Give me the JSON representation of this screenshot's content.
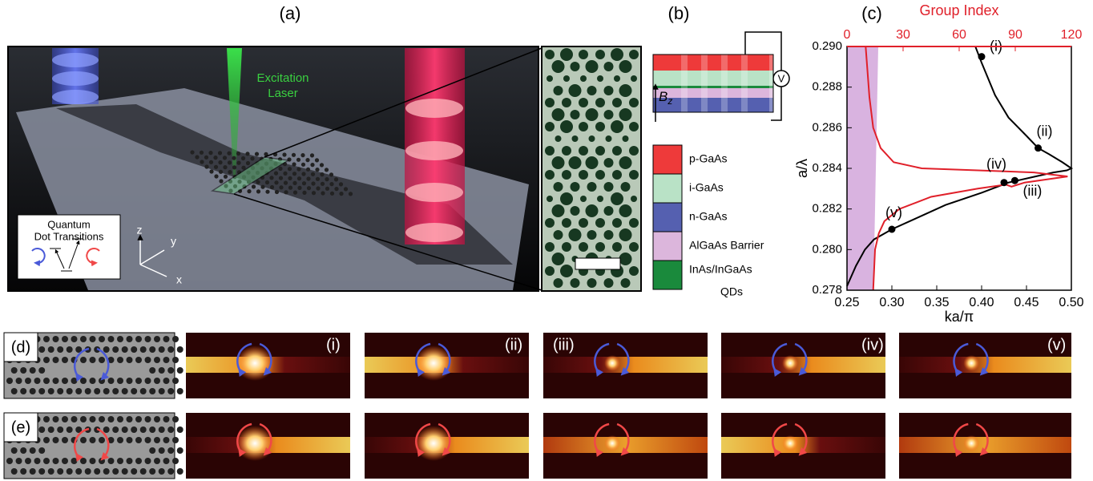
{
  "labels": {
    "a": "(a)",
    "b": "(b)",
    "c": "(c)",
    "d": "(d)",
    "e": "(e)"
  },
  "panel_a": {
    "laser_label": [
      "Excitation",
      "Laser"
    ],
    "inset_title": [
      "Quantum",
      "Dot Transitions"
    ],
    "axes": [
      "z",
      "y",
      "x"
    ]
  },
  "panel_b": {
    "field": "B",
    "field_sub": "z",
    "voltage": "V",
    "legend": [
      {
        "label": [
          "p-GaAs"
        ],
        "color": "#ee3a3a"
      },
      {
        "label": [
          "i-GaAs"
        ],
        "color": "#b9e2c6"
      },
      {
        "label": [
          "n-GaAs"
        ],
        "color": "#5560b0"
      },
      {
        "label": [
          "AlGaAs Barrier"
        ],
        "color": "#dcb6dc"
      },
      {
        "label": [
          "InAs/InGaAs",
          "QDs"
        ],
        "color": "#1a8a3c"
      }
    ]
  },
  "chart_data": {
    "type": "line",
    "xlabel": "ka/π",
    "ylabel": "a/λ",
    "x2label": "Group Index",
    "xlim": [
      0.25,
      0.5
    ],
    "xticks": [
      0.25,
      {
        "value": 0.3,
        "label": "0.30"
      },
      0.35,
      {
        "value": 0.4,
        "label": "0.40"
      },
      0.45,
      {
        "value": 0.5,
        "label": "0.50"
      }
    ],
    "ylim": [
      0.278,
      0.29
    ],
    "yticks": [
      0.278,
      {
        "value": 0.28,
        "label": "0.280"
      },
      0.282,
      0.284,
      0.286,
      0.288,
      {
        "value": 0.29,
        "label": "0.290"
      }
    ],
    "x2lim": [
      0,
      120
    ],
    "x2ticks": [
      0,
      30,
      60,
      90,
      120
    ],
    "series": [
      {
        "color": "#000000",
        "x": [
          0.25,
          0.26,
          0.27,
          0.28,
          0.3,
          0.33,
          0.36,
          0.4,
          0.43,
          0.46,
          0.48,
          0.495,
          0.5,
          0.49,
          0.475,
          0.463,
          0.45,
          0.43,
          0.415,
          0.4,
          0.393
        ],
        "values": [
          0.2782,
          0.2792,
          0.28,
          0.2805,
          0.281,
          0.2816,
          0.2822,
          0.2828,
          0.2833,
          0.2836,
          0.2838,
          0.2839,
          0.284,
          0.2843,
          0.2847,
          0.285,
          0.2856,
          0.2865,
          0.2876,
          0.2892,
          0.29
        ]
      },
      {
        "color": "#e0202a",
        "axis": "x2",
        "x": [
          14,
          15,
          17,
          20,
          28,
          45,
          70,
          85,
          88,
          95,
          110,
          118,
          100,
          70,
          40,
          25,
          18,
          14,
          12,
          10
        ],
        "values": [
          0.278,
          0.28,
          0.2808,
          0.2814,
          0.282,
          0.2826,
          0.283,
          0.2832,
          0.2831,
          0.2833,
          0.2835,
          0.2836,
          0.2838,
          0.2839,
          0.284,
          0.2843,
          0.285,
          0.286,
          0.2875,
          0.29
        ]
      }
    ],
    "points": [
      {
        "label": "(i)",
        "x": 0.4,
        "y": 0.2895
      },
      {
        "label": "(ii)",
        "x": 0.463,
        "y": 0.285
      },
      {
        "label": "(iii)",
        "x": 0.437,
        "y": 0.2834
      },
      {
        "label": "(iv)",
        "x": 0.425,
        "y": 0.2833
      },
      {
        "label": "(v)",
        "x": 0.3,
        "y": 0.281
      }
    ]
  },
  "panel_de": {
    "modes": [
      "(i)",
      "(ii)",
      "(iii)",
      "(iv)",
      "(v)"
    ]
  }
}
